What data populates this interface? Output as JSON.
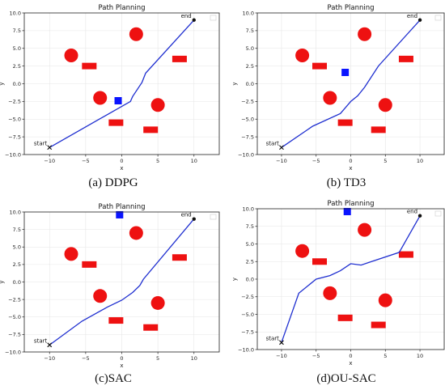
{
  "figure": {
    "captions": [
      "(a) DDPG",
      "(b) TD3",
      "(c)SAC",
      "(d)OU-SAC"
    ]
  },
  "chart_data": [
    {
      "type": "line",
      "title": "Path Planning",
      "xlabel": "x",
      "ylabel": "y",
      "xlim": [
        -13.5,
        13.5
      ],
      "ylim": [
        -10,
        10
      ],
      "xticks": [
        -10,
        -5,
        0,
        5,
        10
      ],
      "xtick_labels": [
        "−10",
        "−5",
        "0",
        "5",
        "10"
      ],
      "yticks": [
        -10,
        -7.5,
        -5,
        -2.5,
        0,
        2.5,
        5,
        7.5,
        10
      ],
      "ytick_labels": [
        "−10.0",
        "−7.5",
        "−5.0",
        "−2.5",
        "0.0",
        "2.5",
        "5.0",
        "7.5",
        "10.0"
      ],
      "grid": true,
      "legend": "top-right (empty)",
      "start": {
        "label": "start",
        "x": -10,
        "y": -9
      },
      "end": {
        "label": "end",
        "x": 10,
        "y": 9
      },
      "path": {
        "color": "#1f2fd0",
        "x": [
          -10,
          1.2,
          1.5,
          2.8,
          3.3,
          10
        ],
        "y": [
          -9,
          -2.5,
          -1.8,
          0.2,
          1.5,
          9
        ]
      },
      "circle_obstacles": [
        {
          "x": -7,
          "y": 4
        },
        {
          "x": 2,
          "y": 7
        },
        {
          "x": -3,
          "y": -2
        },
        {
          "x": 5,
          "y": -3
        }
      ],
      "rect_obstacles": [
        {
          "x": -4.5,
          "y": 2.5
        },
        {
          "x": 8,
          "y": 3.5
        },
        {
          "x": -0.8,
          "y": -5.5
        },
        {
          "x": 4,
          "y": -6.5
        }
      ],
      "moving_obstacle": {
        "x": -0.5,
        "y": -2.4,
        "color": "#0a14ff"
      },
      "colors": {
        "obstacle": "#ee1111"
      }
    },
    {
      "type": "line",
      "title": "Path Planning",
      "xlabel": "x",
      "ylabel": "y",
      "xlim": [
        -13.5,
        13.5
      ],
      "ylim": [
        -10,
        10
      ],
      "xticks": [
        -10,
        -5,
        0,
        5,
        10
      ],
      "xtick_labels": [
        "−10",
        "−5",
        "0",
        "5",
        "10"
      ],
      "yticks": [
        -10,
        -7.5,
        -5,
        -2.5,
        0,
        2.5,
        5,
        7.5,
        10
      ],
      "ytick_labels": [
        "−10.0",
        "−7.5",
        "−5.0",
        "−2.5",
        "0.0",
        "2.5",
        "5.0",
        "7.5",
        "10.0"
      ],
      "grid": true,
      "legend": "top-right (empty)",
      "start": {
        "label": "start",
        "x": -10,
        "y": -9
      },
      "end": {
        "label": "end",
        "x": 10,
        "y": 9
      },
      "path": {
        "color": "#1f2fd0",
        "x": [
          -10,
          -5.5,
          -1.5,
          0,
          1,
          2,
          4,
          10
        ],
        "y": [
          -9,
          -6,
          -4.2,
          -2.5,
          -1.7,
          -0.5,
          2.5,
          9
        ]
      },
      "circle_obstacles": [
        {
          "x": -7,
          "y": 4
        },
        {
          "x": 2,
          "y": 7
        },
        {
          "x": -3,
          "y": -2
        },
        {
          "x": 5,
          "y": -3
        }
      ],
      "rect_obstacles": [
        {
          "x": -4.5,
          "y": 2.5
        },
        {
          "x": 8,
          "y": 3.5
        },
        {
          "x": -0.8,
          "y": -5.5
        },
        {
          "x": 4,
          "y": -6.5
        }
      ],
      "moving_obstacle": {
        "x": -0.8,
        "y": 1.6,
        "color": "#0a14ff"
      },
      "colors": {
        "obstacle": "#ee1111"
      }
    },
    {
      "type": "line",
      "title": "Path Planning",
      "xlabel": "x",
      "ylabel": "y",
      "xlim": [
        -13.5,
        13.5
      ],
      "ylim": [
        -10,
        10
      ],
      "xticks": [
        -10,
        -5,
        0,
        5,
        10
      ],
      "xtick_labels": [
        "−10",
        "−5",
        "0",
        "5",
        "10"
      ],
      "yticks": [
        -10,
        -7.5,
        -5,
        -2.5,
        0,
        2.5,
        5,
        7.5,
        10
      ],
      "ytick_labels": [
        "−10.0",
        "−7.5",
        "−5.0",
        "−2.5",
        "0.0",
        "2.5",
        "5.0",
        "7.5",
        "10.0"
      ],
      "grid": true,
      "legend": "top-right (empty)",
      "start": {
        "label": "start",
        "x": -10,
        "y": -9
      },
      "end": {
        "label": "end",
        "x": 10,
        "y": 9
      },
      "path": {
        "color": "#1f2fd0",
        "x": [
          -10,
          -5.5,
          -2,
          0,
          1.5,
          2.5,
          3,
          10
        ],
        "y": [
          -9,
          -5.6,
          -3.6,
          -2.6,
          -1.5,
          -0.5,
          0.4,
          9
        ]
      },
      "circle_obstacles": [
        {
          "x": -7,
          "y": 4
        },
        {
          "x": 2,
          "y": 7
        },
        {
          "x": -3,
          "y": -2
        },
        {
          "x": 5,
          "y": -3
        }
      ],
      "rect_obstacles": [
        {
          "x": -4.5,
          "y": 2.5
        },
        {
          "x": 8,
          "y": 3.5
        },
        {
          "x": -0.8,
          "y": -5.5
        },
        {
          "x": 4,
          "y": -6.5
        }
      ],
      "moving_obstacle": {
        "x": -0.3,
        "y": 9.6,
        "color": "#0a14ff"
      },
      "colors": {
        "obstacle": "#ee1111"
      }
    },
    {
      "type": "line",
      "title": "Path Planning",
      "xlabel": "x",
      "ylabel": "y",
      "xlim": [
        -13.5,
        13.5
      ],
      "ylim": [
        -10,
        10
      ],
      "xticks": [
        -10,
        -5,
        0,
        5,
        10
      ],
      "xtick_labels": [
        "−10",
        "−5",
        "0",
        "5",
        "10"
      ],
      "yticks": [
        -10,
        -7.5,
        -5,
        -2.5,
        0,
        2.5,
        5,
        7.5,
        10
      ],
      "ytick_labels": [
        "−10.0",
        "−7.5",
        "−5.0",
        "−2.5",
        "0.0",
        "2.5",
        "5.0",
        "7.5",
        "10.0"
      ],
      "grid": true,
      "legend": "top-right (empty)",
      "start": {
        "label": "start",
        "x": -10,
        "y": -9
      },
      "end": {
        "label": "end",
        "x": 10,
        "y": 9
      },
      "path": {
        "color": "#1f2fd0",
        "x": [
          -10,
          -7.5,
          -5,
          -3,
          -1.5,
          0,
          1.5,
          3,
          7,
          10
        ],
        "y": [
          -9,
          -2,
          0,
          0.5,
          1.2,
          2.2,
          2,
          2.5,
          3.8,
          9
        ]
      },
      "circle_obstacles": [
        {
          "x": -7,
          "y": 4
        },
        {
          "x": 2,
          "y": 7
        },
        {
          "x": -3,
          "y": -2
        },
        {
          "x": 5,
          "y": -3
        }
      ],
      "rect_obstacles": [
        {
          "x": -4.5,
          "y": 2.5
        },
        {
          "x": 8,
          "y": 3.5
        },
        {
          "x": -0.8,
          "y": -5.5
        },
        {
          "x": 4,
          "y": -6.5
        }
      ],
      "moving_obstacle": {
        "x": -0.5,
        "y": 9.6,
        "color": "#0a14ff"
      },
      "colors": {
        "obstacle": "#ee1111"
      }
    }
  ]
}
